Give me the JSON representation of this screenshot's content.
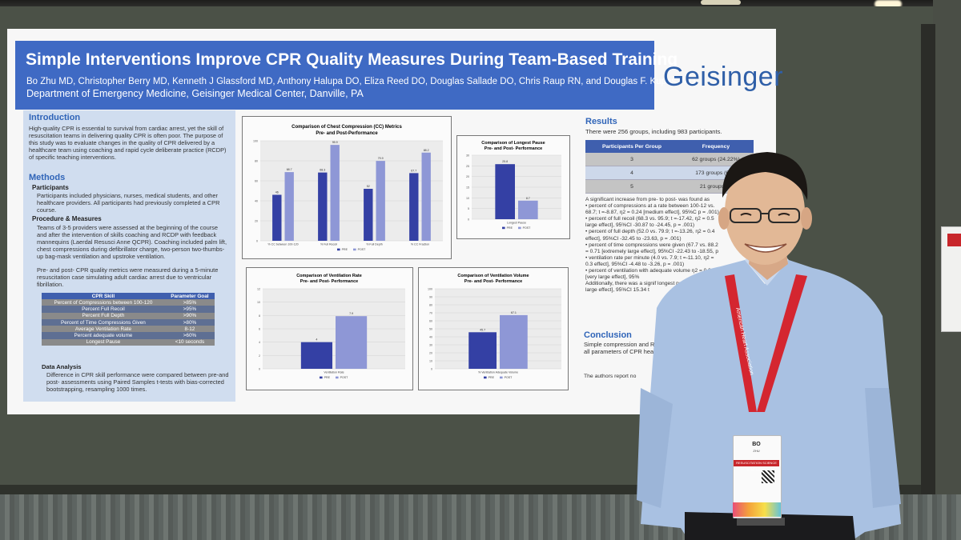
{
  "poster": {
    "title": "Simple Interventions Improve CPR Quality Measures During Team-Based Training",
    "authors": "Bo Zhu MD, Christopher Berry MD, Kenneth J Glassford MD, Anthony Halupa DO, Eliza Reed DO, Douglas Sallade DO, Chris Raup RN, and Douglas F. Kupas, MD",
    "affiliation": "Department of Emergency Medicine, Geisinger Medical Center, Danville, PA",
    "logo": "Geisinger"
  },
  "introduction": {
    "heading": "Introduction",
    "text": "High-quality CPR is essential to survival from cardiac arrest, yet the skill of resuscitation teams in delivering quality CPR is often poor. The purpose of this study was to evaluate changes in the quality of CPR delivered by a healthcare team using coaching and rapid cycle deliberate practice (RCDP) of specific teaching interventions."
  },
  "methods": {
    "heading": "Methods",
    "participants_heading": "Participants",
    "participants": "Participants included physicians, nurses, medical students, and other healthcare providers. All participants had previously completed a CPR course.",
    "procedure_heading": "Procedure & Measures",
    "procedure": "Teams of 3-5 providers were assessed at the beginning of the course and after the intervention of skills coaching and RCDP with feedback mannequins (Laerdal Resusci Anne QCPR). Coaching included palm lift, chest compressions during defibrillator charge, two-person two-thumbs-up bag-mask ventilation and upstroke ventilation.",
    "procedure2": "Pre- and post- CPR quality metrics were measured during a 5-minute resuscitation case simulating adult cardiac arrest due to ventricular fibrillation.",
    "table_headers": [
      "CPR Skill",
      "Parameter Goal"
    ],
    "table_rows": [
      [
        "Percent of Compressions between 100-120",
        ">85%"
      ],
      [
        "Percent Full Recoil",
        ">95%"
      ],
      [
        "Percent Full Depth",
        ">90%"
      ],
      [
        "Percent of Time Compressions Given",
        ">80%"
      ],
      [
        "Average Ventilation Rate",
        "8-12"
      ],
      [
        "Percent adequate volume",
        ">60%"
      ],
      [
        "Longest Pause",
        "<10 seconds"
      ]
    ],
    "analysis_heading": "Data Analysis",
    "analysis": "Difference in CPR skill performance were compared between pre-and post- assessments using Paired Samples t-tests with bias-corrected bootstrapping, resampling 1000 times."
  },
  "charts": {
    "cc": {
      "title1": "Comparison of Chest Compression (CC) Metrics",
      "title2": "Pre- and Post-Performance",
      "categories": [
        "% CC between 100-120",
        "% Full Recoil",
        "% Full Depth",
        "% CC Fraction"
      ],
      "pre": [
        46,
        68.3,
        52,
        67.7
      ],
      "post": [
        68.7,
        95.9,
        79.9,
        88.2
      ],
      "pre_labels": [
        "46",
        "68.3",
        "52",
        "67.7"
      ],
      "post_labels": [
        "68.7",
        "95.9",
        "79.9",
        "88.2"
      ],
      "ticks": [
        "0",
        "20",
        "40",
        "60",
        "80",
        "100"
      ],
      "legend": [
        "PRE",
        "POST"
      ]
    },
    "pause": {
      "title1": "Comparison of Longest Pause",
      "title2": "Pre- and Post- Performance",
      "category": "Longest Pause",
      "pre": 25.8,
      "post": 8.7,
      "pre_label": "25.8",
      "post_label": "8.7",
      "ticks": [
        "0",
        "5",
        "10",
        "15",
        "20",
        "25",
        "30"
      ],
      "legend": [
        "PRE",
        "POST"
      ]
    },
    "rate": {
      "title1": "Comparison of Ventilation Rate",
      "title2": "Pre- and Post- Performance",
      "category": "Ventilation Rate",
      "pre": 4,
      "post": 7.9,
      "pre_label": "4",
      "post_label": "7.9",
      "ticks": [
        "0",
        "2",
        "4",
        "6",
        "8",
        "10",
        "12"
      ],
      "legend": [
        "PRE",
        "POST"
      ]
    },
    "volume": {
      "title1": "Comparison of Ventilation Volume",
      "title2": "Pre- and Post- Performance",
      "category": "% Ventilation Adequate Volume",
      "pre": 45.7,
      "post": 67.1,
      "pre_label": "45.7",
      "post_label": "67.1",
      "ticks": [
        "0",
        "10",
        "20",
        "30",
        "40",
        "50",
        "60",
        "70",
        "80",
        "90",
        "100"
      ],
      "legend": [
        "PRE",
        "POST"
      ]
    },
    "colors": {
      "pre": "#3440a4",
      "post": "#8e97d6"
    }
  },
  "results": {
    "heading": "Results",
    "intro": "There were 256 groups, including 983 participants.",
    "table_headers": [
      "Participants Per Group",
      "Frequency"
    ],
    "table_rows": [
      [
        "3",
        "62 groups (24.22%)"
      ],
      [
        "4",
        "173 groups (67.5"
      ],
      [
        "5",
        "21 groups (9."
      ]
    ],
    "text": "A significant increase from pre- to post- was found as\n• percent of compressions at a rate between 100-12 vs. 68.7; t =-8.87, η2 = 0.24 [medium effect], 95%C p = .001)\n• percent of full recoil (68.3 vs. 95.9; t =-17.42, η2 = 0.5 large effect], 95%CI -30.87 to -24.45, p = .001)\n• percent of full depth (52.0 vs. 79.9; t =-13.26, η2 = 0.4 effect], 95%CI -32.45 to -23.63, p = .001)\n• percent of time compressions were given (67.7 vs. 88.2 = 0.71 [extremely large effect], 95%CI -22.43 to -18.55, p\n• ventilation rate per minute (4.0 vs. 7.9; t =-11.10, η2 = 0.3 effect], 95%CI -4.48 to -3.26, p = .001)\n• percent of ventilation with adequate volume η2 = 0.30 [very large effect], 95%\nAdditionally, there was a signif longest pause (25.8 sec vs large effect], 95%CI 15.34 t"
  },
  "conclusion": {
    "heading": "Conclusion",
    "text": "Simple compression and RCDP, and real-time fe all parameters of CPR healthcare teams.",
    "authors_note": "The authors report no"
  },
  "badge": {
    "name": "BO",
    "sub": "ZHU",
    "strip": "RESUSCITATION SCIENCE SYMPOSIUM",
    "lanyard": "American Heart Association"
  }
}
